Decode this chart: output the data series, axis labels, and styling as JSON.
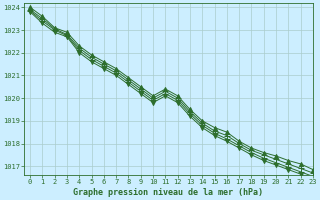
{
  "title": "Graphe pression niveau de la mer (hPa)",
  "bg_color": "#cceeff",
  "grid_major_color": "#aacccc",
  "grid_minor_color": "#bbdddd",
  "line_color": "#2d6e2d",
  "xlim": [
    -0.5,
    23
  ],
  "ylim": [
    1016.6,
    1024.2
  ],
  "yticks": [
    1017,
    1018,
    1019,
    1020,
    1021,
    1022,
    1023,
    1024
  ],
  "xticks": [
    0,
    1,
    2,
    3,
    4,
    5,
    6,
    7,
    8,
    9,
    10,
    11,
    12,
    13,
    14,
    15,
    16,
    17,
    18,
    19,
    20,
    21,
    22,
    23
  ],
  "series": [
    [
      1024.0,
      1023.6,
      1023.1,
      1022.9,
      1022.3,
      1021.9,
      1021.6,
      1021.3,
      1020.9,
      1020.5,
      1020.1,
      1020.4,
      1020.1,
      1019.5,
      1019.0,
      1018.7,
      1018.5,
      1018.1,
      1017.8,
      1017.6,
      1017.45,
      1017.25,
      1017.1,
      1016.85
    ],
    [
      1023.9,
      1023.5,
      1023.05,
      1022.8,
      1022.2,
      1021.8,
      1021.5,
      1021.2,
      1020.8,
      1020.4,
      1020.0,
      1020.3,
      1020.0,
      1019.4,
      1018.9,
      1018.55,
      1018.35,
      1018.0,
      1017.7,
      1017.5,
      1017.3,
      1017.1,
      1016.9,
      1016.7
    ],
    [
      1023.85,
      1023.4,
      1023.0,
      1022.75,
      1022.1,
      1021.7,
      1021.4,
      1021.1,
      1020.7,
      1020.3,
      1019.9,
      1020.2,
      1019.9,
      1019.3,
      1018.8,
      1018.45,
      1018.2,
      1017.9,
      1017.6,
      1017.35,
      1017.15,
      1016.95,
      1016.75,
      1016.55
    ],
    [
      1023.8,
      1023.3,
      1022.9,
      1022.7,
      1022.0,
      1021.6,
      1021.3,
      1021.0,
      1020.6,
      1020.2,
      1019.8,
      1020.1,
      1019.8,
      1019.2,
      1018.7,
      1018.35,
      1018.1,
      1017.8,
      1017.5,
      1017.25,
      1017.05,
      1016.85,
      1016.65,
      1016.45
    ]
  ],
  "markers": [
    "^",
    "+",
    "+",
    "v"
  ],
  "marker_sizes": [
    3,
    4,
    4,
    3
  ],
  "linewidth": 0.7,
  "tick_fontsize": 5,
  "title_fontsize": 6,
  "tick_color": "#2d6e2d",
  "spine_color": "#2d6e2d"
}
